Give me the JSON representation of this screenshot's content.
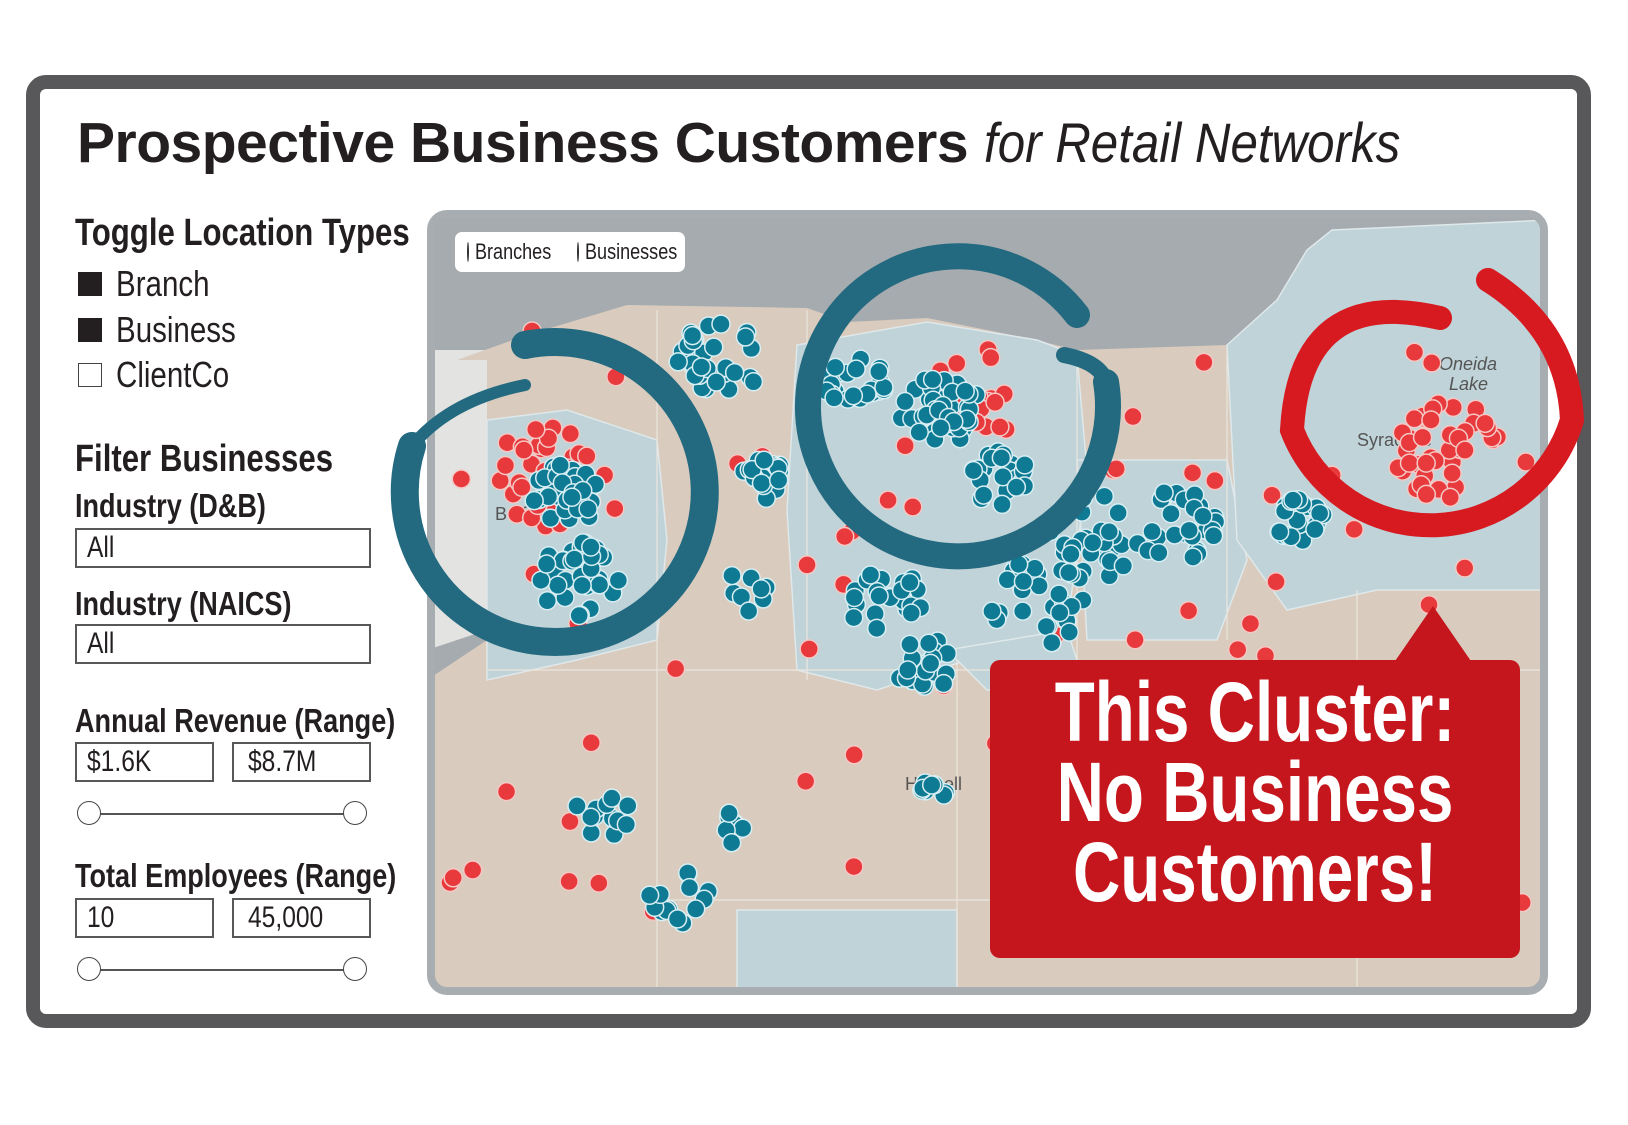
{
  "title": {
    "bold": "Prospective Business Customers",
    "italic": "for Retail Networks"
  },
  "toggle": {
    "heading": "Toggle Location Types",
    "items": [
      {
        "label": "Branch",
        "checked": true
      },
      {
        "label": "Business",
        "checked": true
      },
      {
        "label": "ClientCo",
        "checked": false
      }
    ]
  },
  "filter": {
    "heading": "Filter Businesses",
    "industry_dnb": {
      "label": "Industry (D&B)",
      "value": "All"
    },
    "industry_naics": {
      "label": "Industry (NAICS)",
      "value": "All"
    },
    "revenue": {
      "label": "Annual Revenue (Range)",
      "min": "$1.6K",
      "max": "$8.7M",
      "slider_low": 0,
      "slider_high": 1
    },
    "employees": {
      "label": "Total Employees (Range)",
      "min": "10",
      "max": "45,000",
      "slider_low": 0,
      "slider_high": 1
    }
  },
  "map": {
    "legend": [
      {
        "label": "Branches",
        "color": "#e8393d"
      },
      {
        "label": "Businesses",
        "color": "#0e7a94"
      }
    ],
    "labels": {
      "city1": "Buffalo",
      "city2": "Hornell",
      "lake": "Oneida",
      "lake2": "Lake",
      "city3": "Syracuse"
    }
  },
  "annotations": {
    "ring_business_color": "#236a80",
    "ring_branch_color": "#d71920",
    "callout_color": "#c4161c",
    "callout_lines": [
      "This Cluster:",
      "No Business",
      "Customers!"
    ]
  }
}
